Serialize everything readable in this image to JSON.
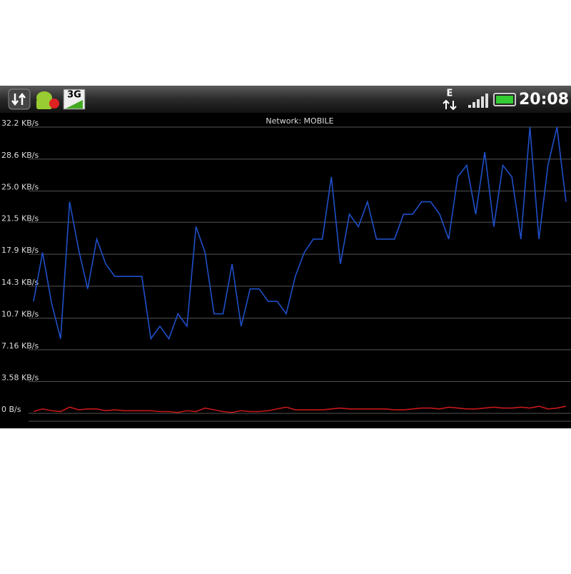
{
  "status_bar": {
    "time": "20:08",
    "network_badge": "3G",
    "data_type": "E"
  },
  "chart_data": {
    "type": "line",
    "title": "Network: MOBILE",
    "ylim": [
      0,
      32.2
    ],
    "yticks": [
      {
        "value": 0,
        "label": "0 B/s"
      },
      {
        "value": 3.58,
        "label": "3.58 KB/s"
      },
      {
        "value": 7.16,
        "label": "7.16 KB/s"
      },
      {
        "value": 10.7,
        "label": "10.7 KB/s"
      },
      {
        "value": 14.3,
        "label": "14.3 KB/s"
      },
      {
        "value": 17.9,
        "label": "17.9 KB/s"
      },
      {
        "value": 21.5,
        "label": "21.5 KB/s"
      },
      {
        "value": 25.0,
        "label": "25.0 KB/s"
      },
      {
        "value": 28.6,
        "label": "28.6 KB/s"
      },
      {
        "value": 32.2,
        "label": "32.2 KB/s"
      }
    ],
    "grid": true,
    "series": [
      {
        "color": "#1f4fc8",
        "values": [
          12.6,
          18.1,
          12.4,
          8.4,
          23.8,
          18.4,
          14.0,
          19.6,
          16.8,
          15.4,
          15.4,
          15.4,
          15.4,
          8.4,
          9.8,
          8.4,
          11.2,
          9.8,
          21.0,
          18.1,
          11.2,
          11.2,
          16.8,
          9.8,
          14.0,
          14.0,
          12.6,
          12.6,
          11.2,
          15.4,
          18.1,
          19.6,
          19.6,
          26.6,
          16.8,
          22.4,
          21.0,
          23.8,
          19.6,
          19.6,
          19.6,
          22.4,
          22.4,
          23.8,
          23.8,
          22.4,
          19.6,
          26.6,
          27.9,
          22.4,
          29.4,
          21.0,
          27.9,
          26.6,
          19.6,
          32.2,
          19.6,
          27.9,
          32.2,
          23.8
        ]
      },
      {
        "color": "#c81818",
        "values": [
          0.2,
          0.5,
          0.3,
          0.2,
          0.7,
          0.4,
          0.5,
          0.5,
          0.3,
          0.4,
          0.3,
          0.3,
          0.3,
          0.3,
          0.2,
          0.2,
          0.1,
          0.3,
          0.2,
          0.6,
          0.4,
          0.2,
          0.1,
          0.3,
          0.2,
          0.2,
          0.3,
          0.5,
          0.7,
          0.4,
          0.4,
          0.4,
          0.4,
          0.5,
          0.6,
          0.5,
          0.5,
          0.5,
          0.5,
          0.5,
          0.4,
          0.4,
          0.5,
          0.6,
          0.6,
          0.5,
          0.7,
          0.6,
          0.5,
          0.5,
          0.6,
          0.7,
          0.6,
          0.6,
          0.7,
          0.6,
          0.8,
          0.5,
          0.6,
          0.8
        ]
      }
    ]
  }
}
